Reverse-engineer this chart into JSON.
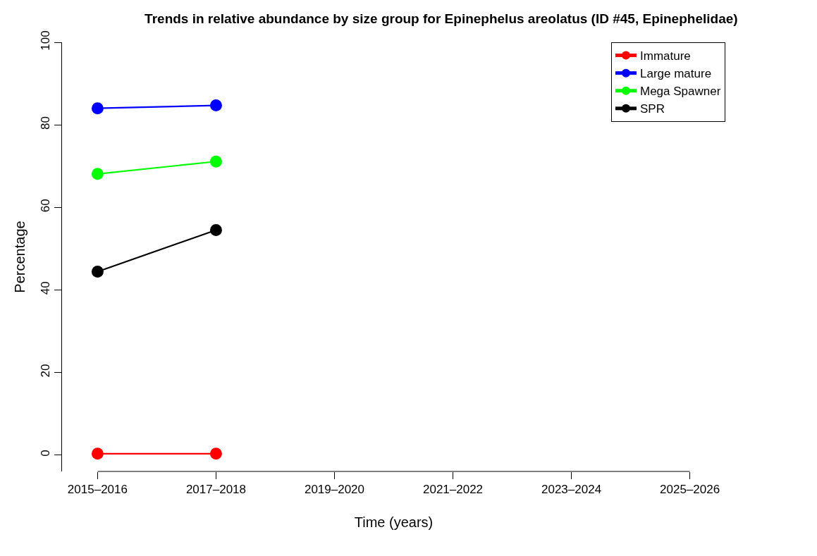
{
  "chart_data": {
    "type": "line",
    "title": "Trends in relative abundance by size group for Epinephelus areolatus (ID #45, Epinephelidae)",
    "xlabel": "Time (years)",
    "ylabel": "Percentage",
    "categories": [
      "2015–2016",
      "2017–2018",
      "2019–2020",
      "2021–2022",
      "2023–2024",
      "2025–2026"
    ],
    "series": [
      {
        "name": "Immature",
        "color": "#ff0000",
        "values": [
          0.3,
          0.3,
          null,
          null,
          null,
          null
        ]
      },
      {
        "name": "Large mature",
        "color": "#0000ff",
        "values": [
          84.0,
          84.7,
          null,
          null,
          null,
          null
        ]
      },
      {
        "name": "Mega Spawner",
        "color": "#00ff00",
        "values": [
          68.1,
          71.1,
          null,
          null,
          null,
          null
        ]
      },
      {
        "name": "SPR",
        "color": "#000000",
        "values": [
          44.4,
          54.5,
          null,
          null,
          null,
          null
        ]
      }
    ],
    "ylim": [
      -4,
      100
    ],
    "yticks": [
      0,
      20,
      40,
      60,
      80,
      100
    ],
    "grid": false,
    "legend": "top right",
    "marker": "circle",
    "line_style": "solid"
  }
}
